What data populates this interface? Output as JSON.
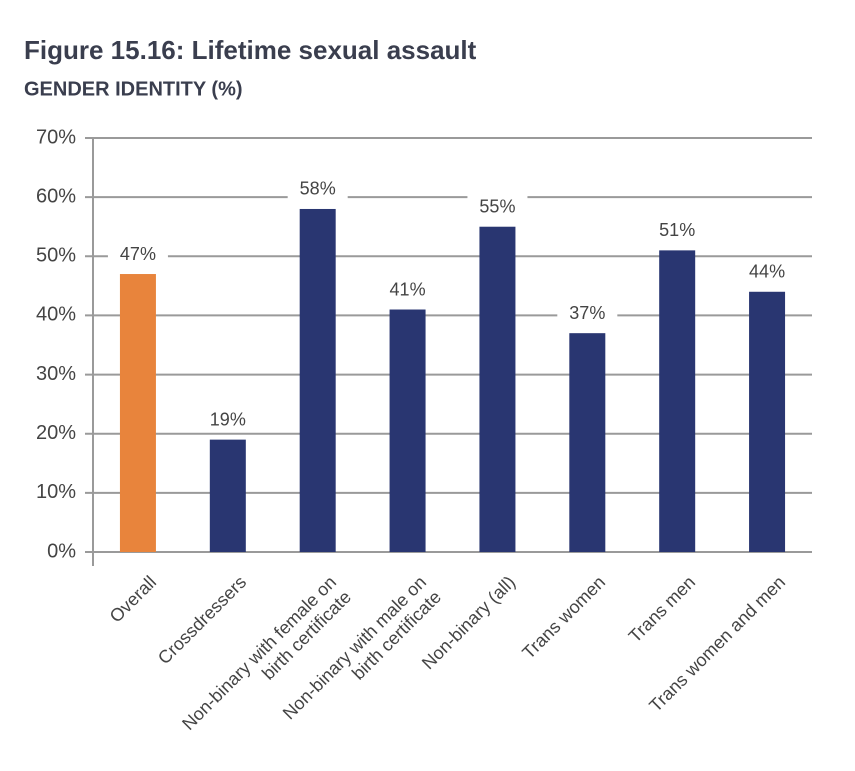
{
  "chart_data": {
    "type": "bar",
    "title": "Figure 15.16: Lifetime sexual assault",
    "subtitle": "GENDER IDENTITY (%)",
    "categories": [
      "Overall",
      "Crossdressers",
      "Non-binary with female on birth certificate",
      "Non-binary with male on birth certificate",
      "Non-binary (all)",
      "Trans women",
      "Trans men",
      "Trans women and men"
    ],
    "values": [
      47,
      19,
      58,
      41,
      55,
      37,
      51,
      44
    ],
    "value_labels": [
      "47%",
      "19%",
      "58%",
      "41%",
      "55%",
      "37%",
      "51%",
      "44%"
    ],
    "colors": [
      "#e8843c",
      "#293671",
      "#293671",
      "#293671",
      "#293671",
      "#293671",
      "#293671",
      "#293671"
    ],
    "ylim": [
      0,
      70
    ],
    "yticks": [
      {
        "value": 0,
        "label": "0%"
      },
      {
        "value": 10,
        "label": "10%"
      },
      {
        "value": 20,
        "label": "20%"
      },
      {
        "value": 30,
        "label": "30%"
      },
      {
        "value": 40,
        "label": "40%"
      },
      {
        "value": 50,
        "label": "50%"
      },
      {
        "value": 60,
        "label": "60%"
      },
      {
        "value": 70,
        "label": "70%"
      }
    ],
    "grid": true
  }
}
